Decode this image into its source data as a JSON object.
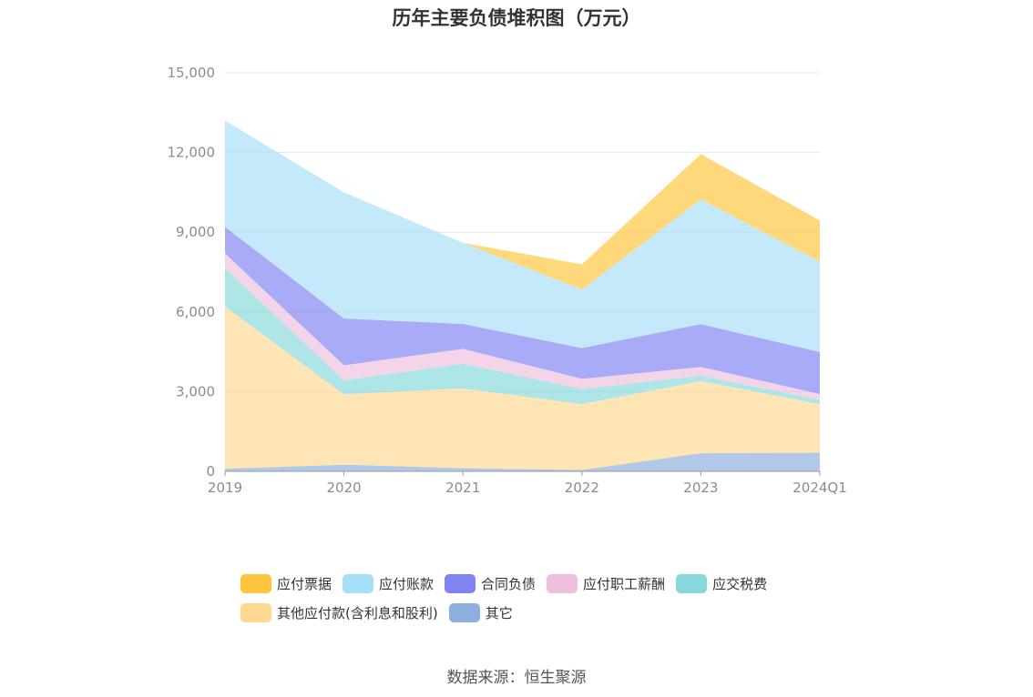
{
  "chart_data": {
    "type": "area",
    "stacked": true,
    "title": "历年主要负债堆积图（万元）",
    "categories": [
      "2019",
      "2020",
      "2021",
      "2022",
      "2023",
      "2024Q1"
    ],
    "ylim": [
      0,
      15000
    ],
    "yticks": [
      "0",
      "3,000",
      "6,000",
      "9,000",
      "12,000",
      "15,000"
    ],
    "grid": true,
    "legend_position": "bottom",
    "series": [
      {
        "name": "其它",
        "color": "#8eaedd",
        "values": [
          100,
          250,
          120,
          50,
          680,
          700
        ]
      },
      {
        "name": "其他应付款(含利息和股利)",
        "color": "#ffd892",
        "values": [
          6100,
          2650,
          3000,
          2480,
          2720,
          1830
        ]
      },
      {
        "name": "应交税费",
        "color": "#88d8db",
        "values": [
          1450,
          520,
          930,
          570,
          200,
          150
        ]
      },
      {
        "name": "应付职工薪酬",
        "color": "#eec0dd",
        "values": [
          550,
          570,
          560,
          380,
          330,
          230
        ]
      },
      {
        "name": "合同负债",
        "color": "#8083f2",
        "values": [
          1000,
          1760,
          940,
          1160,
          1610,
          1580
        ]
      },
      {
        "name": "应付账款",
        "color": "#a8dff8",
        "values": [
          4000,
          4750,
          3050,
          2200,
          4700,
          3400
        ]
      },
      {
        "name": "应付票据",
        "color": "#ffc53d",
        "values": [
          0,
          0,
          0,
          950,
          1700,
          1550
        ]
      }
    ],
    "legend_order": [
      "应付票据",
      "应付账款",
      "合同负债",
      "应付职工薪酬",
      "应交税费",
      "其他应付款(含利息和股利)",
      "其它"
    ]
  },
  "source_text": "数据来源：恒生聚源"
}
